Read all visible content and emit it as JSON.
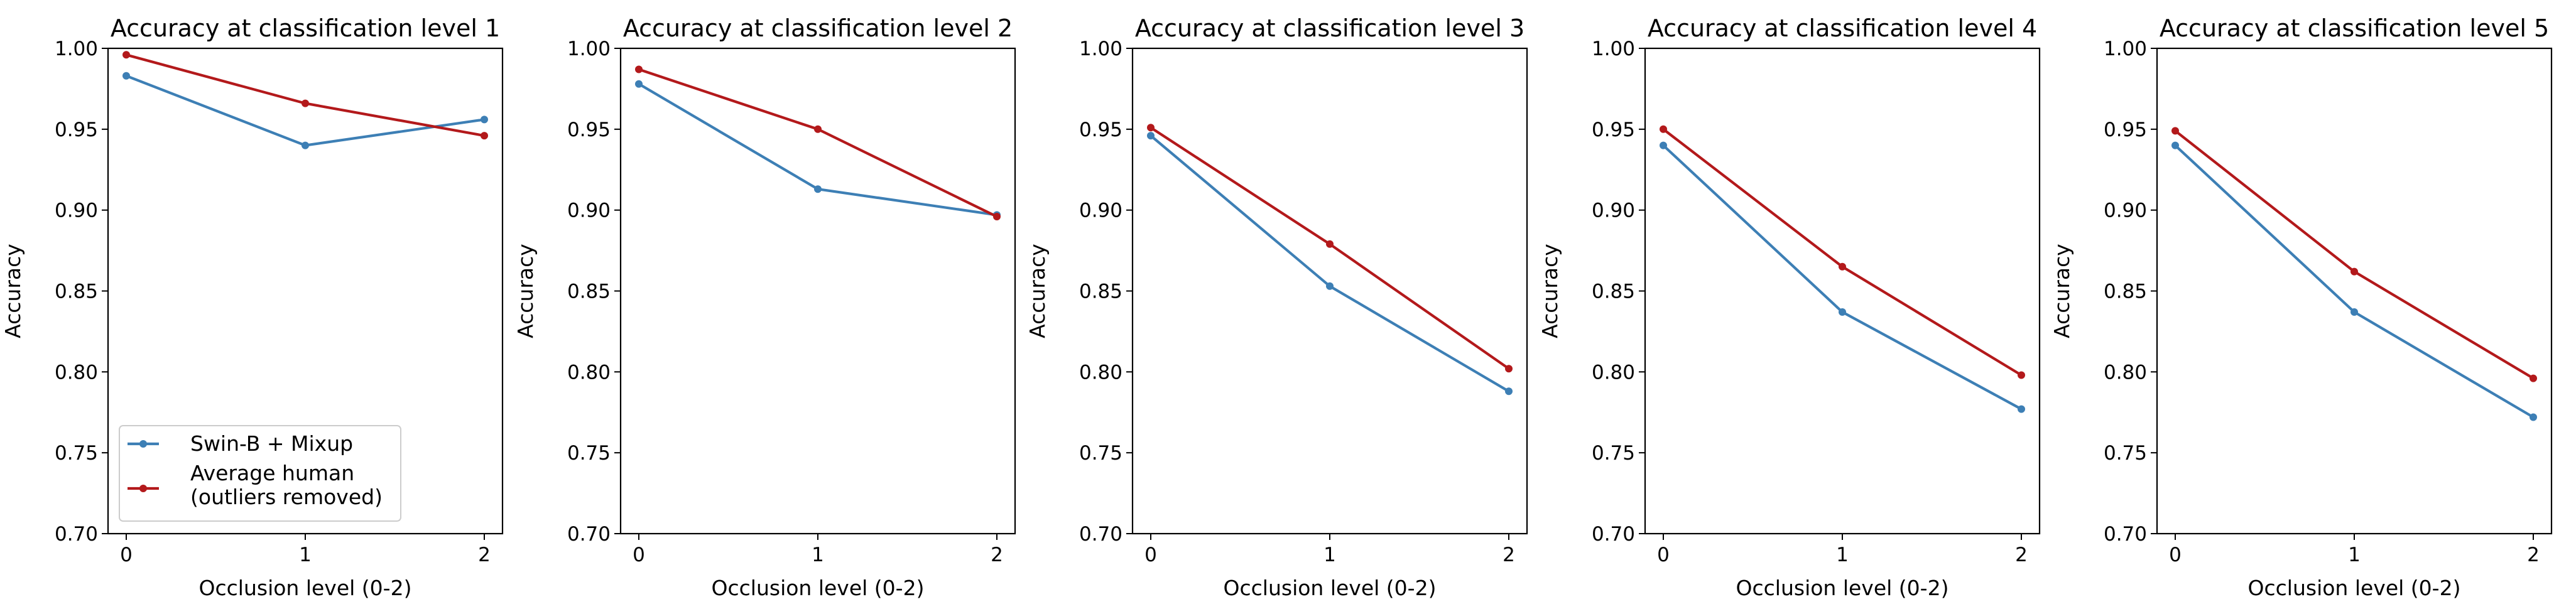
{
  "chart_data": [
    {
      "type": "line",
      "title": "Accuracy at classification level 1",
      "xlabel": "Occlusion level (0-2)",
      "ylabel": "Accuracy",
      "x": [
        0,
        1,
        2
      ],
      "xticks": [
        "0",
        "1",
        "2"
      ],
      "ylim": [
        0.7,
        1.0
      ],
      "yticks": [
        "0.70",
        "0.75",
        "0.80",
        "0.85",
        "0.90",
        "0.95",
        "1.00"
      ],
      "grid": false,
      "legend": "lower-left",
      "series": [
        {
          "name": "Swin-B + Mixup",
          "color": "#3d7fb5",
          "values": [
            0.983,
            0.94,
            0.956
          ]
        },
        {
          "name": "Average human\n(outliers removed)",
          "color": "#b3191b",
          "values": [
            0.996,
            0.966,
            0.946
          ]
        }
      ]
    },
    {
      "type": "line",
      "title": "Accuracy at classification level 2",
      "xlabel": "Occlusion level (0-2)",
      "ylabel": "Accuracy",
      "x": [
        0,
        1,
        2
      ],
      "xticks": [
        "0",
        "1",
        "2"
      ],
      "ylim": [
        0.7,
        1.0
      ],
      "yticks": [
        "0.70",
        "0.75",
        "0.80",
        "0.85",
        "0.90",
        "0.95",
        "1.00"
      ],
      "grid": false,
      "series": [
        {
          "name": "Swin-B + Mixup",
          "color": "#3d7fb5",
          "values": [
            0.978,
            0.913,
            0.897
          ]
        },
        {
          "name": "Average human (outliers removed)",
          "color": "#b3191b",
          "values": [
            0.987,
            0.95,
            0.896
          ]
        }
      ]
    },
    {
      "type": "line",
      "title": "Accuracy at classification level 3",
      "xlabel": "Occlusion level (0-2)",
      "ylabel": "Accuracy",
      "x": [
        0,
        1,
        2
      ],
      "xticks": [
        "0",
        "1",
        "2"
      ],
      "ylim": [
        0.7,
        1.0
      ],
      "yticks": [
        "0.70",
        "0.75",
        "0.80",
        "0.85",
        "0.90",
        "0.95",
        "1.00"
      ],
      "grid": false,
      "series": [
        {
          "name": "Swin-B + Mixup",
          "color": "#3d7fb5",
          "values": [
            0.946,
            0.853,
            0.788
          ]
        },
        {
          "name": "Average human (outliers removed)",
          "color": "#b3191b",
          "values": [
            0.951,
            0.879,
            0.802
          ]
        }
      ]
    },
    {
      "type": "line",
      "title": "Accuracy at classification level 4",
      "xlabel": "Occlusion level (0-2)",
      "ylabel": "Accuracy",
      "x": [
        0,
        1,
        2
      ],
      "xticks": [
        "0",
        "1",
        "2"
      ],
      "ylim": [
        0.7,
        1.0
      ],
      "yticks": [
        "0.70",
        "0.75",
        "0.80",
        "0.85",
        "0.90",
        "0.95",
        "1.00"
      ],
      "grid": false,
      "series": [
        {
          "name": "Swin-B + Mixup",
          "color": "#3d7fb5",
          "values": [
            0.94,
            0.837,
            0.777
          ]
        },
        {
          "name": "Average human (outliers removed)",
          "color": "#b3191b",
          "values": [
            0.95,
            0.865,
            0.798
          ]
        }
      ]
    },
    {
      "type": "line",
      "title": "Accuracy at classification level 5",
      "xlabel": "Occlusion level (0-2)",
      "ylabel": "Accuracy",
      "x": [
        0,
        1,
        2
      ],
      "xticks": [
        "0",
        "1",
        "2"
      ],
      "ylim": [
        0.7,
        1.0
      ],
      "yticks": [
        "0.70",
        "0.75",
        "0.80",
        "0.85",
        "0.90",
        "0.95",
        "1.00"
      ],
      "grid": false,
      "series": [
        {
          "name": "Swin-B + Mixup",
          "color": "#3d7fb5",
          "values": [
            0.94,
            0.837,
            0.772
          ]
        },
        {
          "name": "Average human (outliers removed)",
          "color": "#b3191b",
          "values": [
            0.949,
            0.862,
            0.796
          ]
        }
      ]
    }
  ]
}
